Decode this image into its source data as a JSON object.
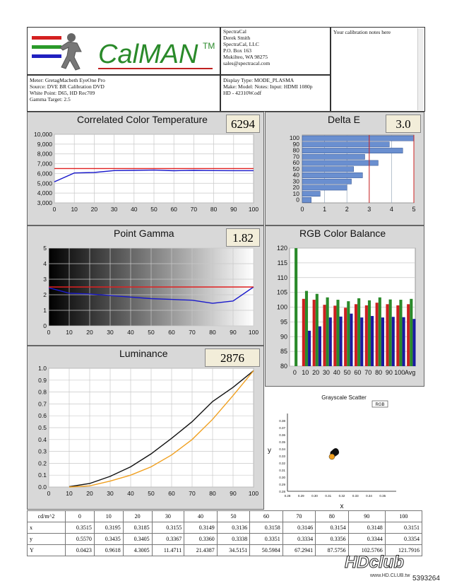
{
  "header": {
    "logo_text": "CalMAN",
    "logo_tm": "TM",
    "company_lines": [
      "SpectraCal",
      "Derek Smith",
      "SpectraCal, LLC",
      "P.O. Box 163",
      "Mukilteo, WA 98275",
      "sales@spectracal.com"
    ],
    "notes_text": "Your calibration notes here",
    "meter_lines": [
      "Meter: GretagMacbeth EyeOne Pro",
      "Source: DVE BR Calibration DVD",
      "White Point: D65, HD Rec709",
      "Gamma Target: 2.5"
    ],
    "display_lines": [
      "Display Type: MODE_PLASMA",
      "Make: Model: Notes: Input: HDMI 1080p",
      "HD   -   42310W.odf"
    ]
  },
  "chart_data": [
    {
      "type": "line",
      "title": "Correlated Color Temperature",
      "value_label": "6294",
      "x": [
        0,
        10,
        20,
        30,
        40,
        50,
        60,
        70,
        80,
        90,
        100
      ],
      "x_ticks": [
        "0",
        "10",
        "20",
        "30",
        "40",
        "50",
        "60",
        "70",
        "80",
        "90",
        "100"
      ],
      "y_ticks": [
        "10,000",
        "9,000",
        "8,000",
        "7,000",
        "6,000",
        "5,000",
        "4,000",
        "3,000"
      ],
      "ylim": [
        3000,
        10000
      ],
      "xlim": [
        0,
        100
      ],
      "series": [
        {
          "values": [
            5150,
            6050,
            6100,
            6300,
            6320,
            6350,
            6280,
            6320,
            6300,
            6290,
            6294
          ],
          "color": "#1a1acc"
        },
        {
          "values": [
            6504,
            6504,
            6504,
            6504,
            6504,
            6504,
            6504,
            6504,
            6504,
            6504,
            6504
          ],
          "color": "#e02020"
        }
      ]
    },
    {
      "type": "bar",
      "orientation": "horizontal",
      "title": "Delta E",
      "value_label": "3.0",
      "categories": [
        "100",
        "90",
        "80",
        "70",
        "60",
        "50",
        "40",
        "30",
        "20",
        "10",
        "0"
      ],
      "values": [
        5.0,
        3.9,
        4.5,
        2.8,
        3.4,
        2.3,
        2.7,
        2.2,
        2.0,
        0.8,
        0.4
      ],
      "x_ticks": [
        "0",
        "1",
        "2",
        "3",
        "4",
        "5"
      ],
      "xlim": [
        0,
        5
      ],
      "ref_lines": [
        {
          "value": 3,
          "color": "#cc2020"
        },
        {
          "value": 5,
          "color": "#cc2020"
        }
      ]
    },
    {
      "type": "line",
      "title": "Point Gamma",
      "value_label": "1.82",
      "x": [
        0,
        10,
        20,
        30,
        40,
        50,
        60,
        70,
        80,
        90,
        100
      ],
      "x_ticks": [
        "0",
        "10",
        "20",
        "30",
        "40",
        "50",
        "60",
        "70",
        "80",
        "90",
        "100"
      ],
      "y_ticks": [
        "5",
        "4",
        "3",
        "2",
        "1",
        "0"
      ],
      "ylim": [
        0,
        5
      ],
      "xlim": [
        0,
        100
      ],
      "series": [
        {
          "values": [
            2.45,
            2.1,
            2.05,
            1.95,
            1.85,
            1.75,
            1.7,
            1.65,
            1.45,
            1.6,
            2.5
          ],
          "color": "#1a1acc"
        },
        {
          "values": [
            2.5,
            2.5,
            2.5,
            2.5,
            2.5,
            2.5,
            2.5,
            2.5,
            2.5,
            2.5,
            2.5
          ],
          "color": "#e02020"
        }
      ]
    },
    {
      "type": "bar",
      "title": "RGB Color Balance",
      "categories": [
        "0",
        "10",
        "20",
        "30",
        "40",
        "50",
        "60",
        "70",
        "80",
        "90",
        "100",
        "Avg"
      ],
      "y_ticks": [
        "120",
        "115",
        "110",
        "105",
        "100",
        "95",
        "90",
        "85",
        "80"
      ],
      "ylim": [
        80,
        120
      ],
      "series": [
        {
          "color": "#cc2020",
          "values": [
            null,
            102.8,
            102.5,
            100.8,
            100.5,
            99.8,
            101.0,
            100.6,
            101.5,
            101.0,
            100.6,
            101.0
          ]
        },
        {
          "color": "#2a8a2a",
          "values": [
            120,
            105.5,
            104.5,
            103.3,
            102.5,
            102.0,
            103.0,
            102.3,
            103.3,
            102.6,
            102.5,
            102.8
          ]
        },
        {
          "color": "#1a1aa0",
          "values": [
            null,
            92.0,
            93.5,
            96.5,
            96.8,
            97.8,
            96.5,
            97.0,
            96.5,
            96.7,
            96.6,
            96.0
          ]
        }
      ]
    },
    {
      "type": "line",
      "title": "Luminance",
      "value_label": "2876",
      "x": [
        0,
        10,
        20,
        30,
        40,
        50,
        60,
        70,
        80,
        90,
        100
      ],
      "x_ticks": [
        "0",
        "10",
        "20",
        "30",
        "40",
        "50",
        "60",
        "70",
        "80",
        "90",
        "100"
      ],
      "y_ticks": [
        "1.0",
        "0.9",
        "0.8",
        "0.7",
        "0.6",
        "0.5",
        "0.4",
        "0.3",
        "0.2",
        "0.1",
        "0.0"
      ],
      "ylim": [
        0,
        1
      ],
      "xlim": [
        0,
        100
      ],
      "series": [
        {
          "values": [
            null,
            0.003,
            0.03,
            0.09,
            0.17,
            0.28,
            0.41,
            0.55,
            0.72,
            0.84,
            0.98
          ],
          "color": "#111111"
        },
        {
          "values": [
            null,
            0.0,
            0.01,
            0.05,
            0.1,
            0.17,
            0.27,
            0.4,
            0.57,
            0.77,
            0.98
          ],
          "color": "#f0a020"
        }
      ]
    },
    {
      "type": "scatter",
      "title": "Grayscale Scatter",
      "legend_text": "RGB",
      "xlabel": "x",
      "ylabel": "y",
      "x_ticks": [
        "0.28",
        "0.29",
        "0.30",
        "0.31",
        "0.32",
        "0.33",
        "0.34",
        "0.35"
      ],
      "y_ticks": [
        "0.38",
        "0.37",
        "0.36",
        "0.35",
        "0.34",
        "0.33",
        "0.32",
        "0.31",
        "0.30",
        "0.29",
        "0.28"
      ],
      "xlim": [
        0.28,
        0.36
      ],
      "ylim": [
        0.28,
        0.39
      ],
      "points": [
        {
          "x": 0.3155,
          "y": 0.3367,
          "color": "#111"
        },
        {
          "x": 0.3149,
          "y": 0.336,
          "color": "#222"
        },
        {
          "x": 0.3136,
          "y": 0.3338,
          "color": "#111"
        },
        {
          "x": 0.3158,
          "y": 0.3351,
          "color": "#333"
        },
        {
          "x": 0.3146,
          "y": 0.3334,
          "color": "#222"
        },
        {
          "x": 0.3154,
          "y": 0.3356,
          "color": "#111"
        },
        {
          "x": 0.3127,
          "y": 0.329,
          "color": "#f0a020"
        }
      ]
    }
  ],
  "table": {
    "header": [
      "cd/m^2",
      "0",
      "10",
      "20",
      "30",
      "40",
      "50",
      "60",
      "70",
      "80",
      "90",
      "100"
    ],
    "rows": [
      [
        "x",
        "0.3515",
        "0.3195",
        "0.3185",
        "0.3155",
        "0.3149",
        "0.3136",
        "0.3158",
        "0.3146",
        "0.3154",
        "0.3148",
        "0.3151"
      ],
      [
        "y",
        "0.5570",
        "0.3435",
        "0.3405",
        "0.3367",
        "0.3360",
        "0.3338",
        "0.3351",
        "0.3334",
        "0.3356",
        "0.3344",
        "0.3354"
      ],
      [
        "Y",
        "0.0423",
        "0.9618",
        "4.3005",
        "11.4711",
        "21.4387",
        "34.5151",
        "50.5984",
        "67.2941",
        "87.5756",
        "102.5766",
        "121.7916"
      ]
    ]
  },
  "watermark": {
    "brand": "HDclub",
    "url": "www.HD.CLUB.tw",
    "code": "5393264"
  }
}
